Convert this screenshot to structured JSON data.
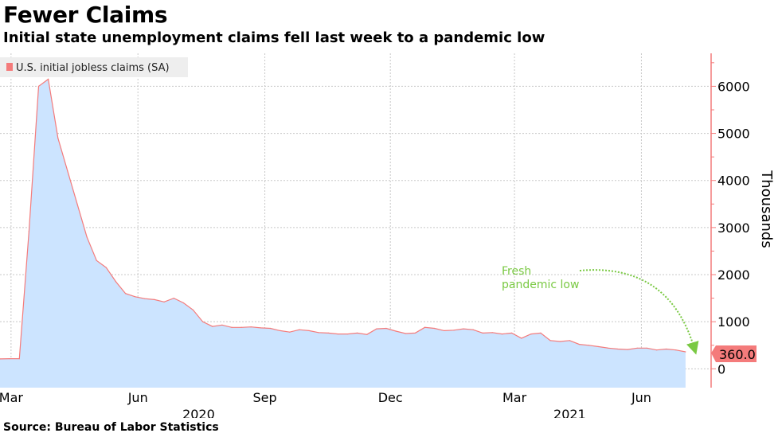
{
  "header": {
    "title": "Fewer Claims",
    "subtitle": "Initial state unemployment claims fell last week to a pandemic low"
  },
  "footer": {
    "source": "Source: Bureau of Labor Statistics"
  },
  "colors": {
    "fill": "#cce4ff",
    "line": "#f47b7b",
    "axis": "#f47b7b",
    "annotation": "#7ac943",
    "last_value_bg": "#f47b7b"
  },
  "chart_data": {
    "type": "area",
    "ylabel": "Thousands",
    "ylim": [
      -400,
      6700
    ],
    "yticks": [
      0,
      1000,
      2000,
      3000,
      4000,
      5000,
      6000
    ],
    "xlim": [
      "2020-02-22",
      "2021-07-10"
    ],
    "grid": true,
    "legend_position": "top-left",
    "x_ticks": [
      {
        "label": "Mar",
        "date": "2020-03-01"
      },
      {
        "label": "Jun",
        "date": "2020-06-01"
      },
      {
        "label": "Sep",
        "date": "2020-09-01"
      },
      {
        "label": "Dec",
        "date": "2020-12-01"
      },
      {
        "label": "Mar",
        "date": "2021-03-01"
      },
      {
        "label": "Jun",
        "date": "2021-06-01"
      }
    ],
    "year_labels": [
      {
        "label": "2020",
        "date": "2020-07-15"
      },
      {
        "label": "2021",
        "date": "2021-04-10"
      }
    ],
    "series": [
      {
        "name": "U.S. initial jobless claims (SA)",
        "x": [
          "2020-02-22",
          "2020-02-29",
          "2020-03-07",
          "2020-03-14",
          "2020-03-21",
          "2020-03-28",
          "2020-04-04",
          "2020-04-11",
          "2020-04-18",
          "2020-04-25",
          "2020-05-02",
          "2020-05-09",
          "2020-05-16",
          "2020-05-23",
          "2020-05-30",
          "2020-06-06",
          "2020-06-13",
          "2020-06-20",
          "2020-06-27",
          "2020-07-04",
          "2020-07-11",
          "2020-07-18",
          "2020-07-25",
          "2020-08-01",
          "2020-08-08",
          "2020-08-15",
          "2020-08-22",
          "2020-08-29",
          "2020-09-05",
          "2020-09-12",
          "2020-09-19",
          "2020-09-26",
          "2020-10-03",
          "2020-10-10",
          "2020-10-17",
          "2020-10-24",
          "2020-10-31",
          "2020-11-07",
          "2020-11-14",
          "2020-11-21",
          "2020-11-28",
          "2020-12-05",
          "2020-12-12",
          "2020-12-19",
          "2020-12-26",
          "2021-01-02",
          "2021-01-09",
          "2021-01-16",
          "2021-01-23",
          "2021-01-30",
          "2021-02-06",
          "2021-02-13",
          "2021-02-20",
          "2021-02-27",
          "2021-03-06",
          "2021-03-13",
          "2021-03-20",
          "2021-03-27",
          "2021-04-03",
          "2021-04-10",
          "2021-04-17",
          "2021-04-24",
          "2021-05-01",
          "2021-05-08",
          "2021-05-15",
          "2021-05-22",
          "2021-05-29",
          "2021-06-05",
          "2021-06-12",
          "2021-06-19",
          "2021-06-26",
          "2021-07-03"
        ],
        "values": [
          210,
          215,
          215,
          2920,
          6000,
          6150,
          4900,
          4200,
          3500,
          2800,
          2300,
          2150,
          1850,
          1600,
          1530,
          1490,
          1470,
          1420,
          1500,
          1400,
          1250,
          1000,
          900,
          930,
          880,
          880,
          890,
          870,
          860,
          810,
          780,
          830,
          810,
          770,
          760,
          740,
          740,
          760,
          730,
          850,
          860,
          800,
          750,
          760,
          880,
          860,
          810,
          820,
          850,
          830,
          760,
          770,
          740,
          760,
          650,
          740,
          760,
          600,
          580,
          600,
          520,
          500,
          470,
          440,
          420,
          410,
          440,
          440,
          400,
          420,
          400,
          360
        ]
      }
    ],
    "last_value_label": "360.0",
    "annotation": "Fresh pandemic low",
    "annotation_lines": [
      "Fresh",
      "pandemic low"
    ]
  }
}
